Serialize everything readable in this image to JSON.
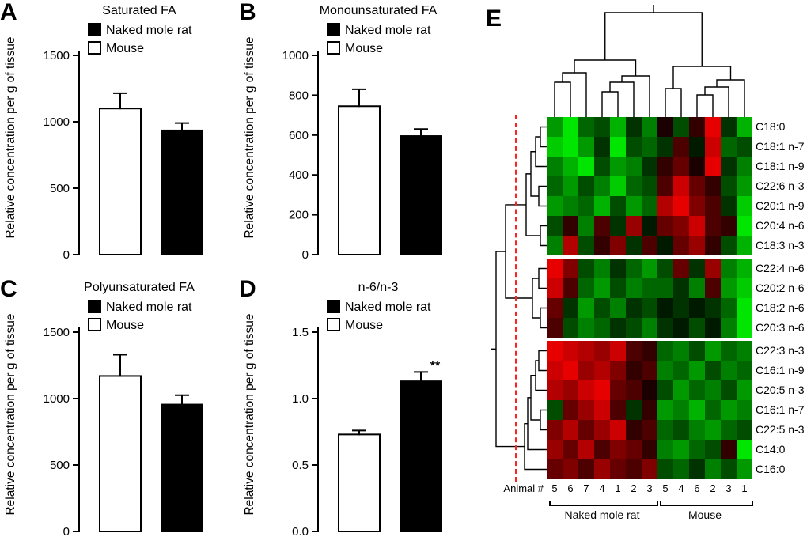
{
  "panel_letters": [
    "A",
    "B",
    "C",
    "D",
    "E"
  ],
  "colors": {
    "bar_mouse": "#ffffff",
    "bar_naked_mole_rat": "#000000",
    "heat_positive": "#ff0000",
    "heat_negative": "#00cc00",
    "heat_zero": "#000000",
    "cluster_cut_line": "#ff2020"
  },
  "chart_data": [
    {
      "panel": "A",
      "type": "bar",
      "title": "Saturated FA",
      "ylabel": "Relative concentration per g of tissue",
      "categories": [
        "Mouse",
        "Naked mole rat"
      ],
      "values": [
        1100,
        935
      ],
      "errors": [
        115,
        55
      ],
      "bar_colors": [
        "#ffffff",
        "#000000"
      ],
      "ylim": [
        0,
        1500
      ],
      "yticks": [
        {
          "v": 0,
          "label": "0"
        },
        {
          "v": 500,
          "label": "500"
        },
        {
          "v": 1000,
          "label": "1000"
        },
        {
          "v": 1500,
          "label": "1500"
        }
      ],
      "legend": [
        {
          "label": "Naked mole rat",
          "color": "#000000"
        },
        {
          "label": "Mouse",
          "color": "#ffffff"
        }
      ],
      "sig": null
    },
    {
      "panel": "B",
      "type": "bar",
      "title": "Monounsaturated FA",
      "ylabel": "Relative concentration per g of tissue",
      "categories": [
        "Mouse",
        "Naked mole rat"
      ],
      "values": [
        745,
        595
      ],
      "errors": [
        85,
        35
      ],
      "bar_colors": [
        "#ffffff",
        "#000000"
      ],
      "ylim": [
        0,
        1000
      ],
      "yticks": [
        {
          "v": 0,
          "label": "0"
        },
        {
          "v": 200,
          "label": "200"
        },
        {
          "v": 400,
          "label": "400"
        },
        {
          "v": 600,
          "label": "600"
        },
        {
          "v": 800,
          "label": "800"
        },
        {
          "v": 1000,
          "label": "1000"
        }
      ],
      "legend": [
        {
          "label": "Naked mole rat",
          "color": "#000000"
        },
        {
          "label": "Mouse",
          "color": "#ffffff"
        }
      ],
      "sig": null
    },
    {
      "panel": "C",
      "type": "bar",
      "title": "Polyunsaturated FA",
      "ylabel": "Relative concentration per g of tissue",
      "categories": [
        "Mouse",
        "Naked mole rat"
      ],
      "values": [
        1170,
        955
      ],
      "errors": [
        160,
        70
      ],
      "bar_colors": [
        "#ffffff",
        "#000000"
      ],
      "ylim": [
        0,
        1500
      ],
      "yticks": [
        {
          "v": 0,
          "label": "0"
        },
        {
          "v": 500,
          "label": "500"
        },
        {
          "v": 1000,
          "label": "1000"
        },
        {
          "v": 1500,
          "label": "1500"
        }
      ],
      "legend": [
        {
          "label": "Naked mole rat",
          "color": "#000000"
        },
        {
          "label": "Mouse",
          "color": "#ffffff"
        }
      ],
      "sig": null
    },
    {
      "panel": "D",
      "type": "bar",
      "title": "n-6/n-3",
      "ylabel": "Relative concentration per g of tissue",
      "categories": [
        "Mouse",
        "Naked mole rat"
      ],
      "values": [
        0.73,
        1.13
      ],
      "errors": [
        0.03,
        0.07
      ],
      "bar_colors": [
        "#ffffff",
        "#000000"
      ],
      "ylim": [
        0,
        1.5
      ],
      "yticks": [
        {
          "v": 0,
          "label": "0.0"
        },
        {
          "v": 0.5,
          "label": "0.5"
        },
        {
          "v": 1,
          "label": "1.0"
        },
        {
          "v": 1.5,
          "label": "1.5"
        }
      ],
      "legend": [
        {
          "label": "Naked mole rat",
          "color": "#000000"
        },
        {
          "label": "Mouse",
          "color": "#ffffff"
        }
      ],
      "sig": {
        "index": 1,
        "label": "**"
      }
    },
    {
      "panel": "E",
      "type": "heatmap",
      "x_label": "Animal #",
      "rows": [
        "C18:0",
        "C18:1 n-7",
        "C18:1 n-9",
        "C22:6 n-3",
        "C20:1 n-9",
        "C20:4 n-6",
        "C18:3 n-3",
        "C22:4 n-6",
        "C20:2 n-6",
        "C18:2 n-6",
        "C20:3 n-6",
        "C22:3 n-3",
        "C16:1 n-9",
        "C20:5 n-3",
        "C16:1 n-7",
        "C22:5 n-3",
        "C14:0",
        "C16:0"
      ],
      "row_separators_after": [
        6,
        10
      ],
      "columns": [
        "5",
        "6",
        "7",
        "4",
        "1",
        "2",
        "3",
        "5",
        "4",
        "6",
        "2",
        "3",
        "1"
      ],
      "col_groups": [
        {
          "label": "Naked mole rat",
          "span": 7
        },
        {
          "label": "Mouse",
          "span": 6
        }
      ],
      "values": [
        [
          -0.6,
          -0.9,
          -0.4,
          -0.3,
          -0.7,
          -0.2,
          -0.5,
          0.1,
          -0.3,
          0.2,
          0.9,
          -0.2,
          -0.7
        ],
        [
          -0.8,
          -0.9,
          -0.6,
          -0.2,
          -0.9,
          -0.3,
          -0.4,
          -0.2,
          0.3,
          -0.1,
          0.8,
          -0.4,
          -0.3
        ],
        [
          -0.5,
          -0.7,
          -0.9,
          -0.3,
          -0.6,
          -0.5,
          -0.2,
          0.2,
          0.4,
          0.1,
          0.9,
          -0.2,
          -0.5
        ],
        [
          -0.4,
          -0.6,
          -0.3,
          -0.5,
          -0.8,
          -0.4,
          -0.3,
          0.3,
          0.8,
          0.4,
          0.2,
          -0.3,
          -0.6
        ],
        [
          -0.6,
          -0.5,
          -0.4,
          -0.7,
          -0.3,
          -0.6,
          -0.4,
          0.7,
          0.9,
          0.5,
          0.3,
          -0.2,
          -0.8
        ],
        [
          -0.3,
          0.2,
          -0.5,
          0.3,
          -0.2,
          0.6,
          -0.1,
          0.4,
          0.5,
          0.8,
          0.3,
          0.2,
          -0.9
        ],
        [
          -0.5,
          0.7,
          -0.3,
          0.2,
          0.5,
          -0.2,
          0.3,
          -0.1,
          0.4,
          0.6,
          0.2,
          -0.3,
          -0.7
        ],
        [
          0.9,
          0.5,
          -0.3,
          -0.5,
          -0.2,
          -0.4,
          -0.6,
          -0.3,
          0.4,
          -0.2,
          0.6,
          -0.5,
          -0.7
        ],
        [
          0.8,
          0.3,
          -0.4,
          -0.6,
          -0.3,
          -0.5,
          -0.4,
          -0.4,
          -0.2,
          -0.5,
          0.3,
          -0.6,
          -0.8
        ],
        [
          0.4,
          -0.2,
          -0.6,
          -0.3,
          -0.5,
          -0.2,
          -0.3,
          -0.1,
          -0.2,
          -0.1,
          -0.2,
          -0.4,
          -0.9
        ],
        [
          0.3,
          -0.3,
          -0.5,
          -0.4,
          -0.2,
          -0.3,
          -0.5,
          -0.2,
          -0.1,
          -0.3,
          -0.1,
          -0.5,
          -0.9
        ],
        [
          0.9,
          0.8,
          0.7,
          0.6,
          0.8,
          0.3,
          0.2,
          -0.4,
          -0.5,
          -0.3,
          -0.6,
          -0.4,
          -0.5
        ],
        [
          0.8,
          0.9,
          0.6,
          0.7,
          0.5,
          0.2,
          0.3,
          -0.5,
          -0.4,
          -0.6,
          -0.3,
          -0.5,
          -0.4
        ],
        [
          0.7,
          0.6,
          0.8,
          0.9,
          0.4,
          0.3,
          0.1,
          -0.3,
          -0.6,
          -0.4,
          -0.5,
          -0.3,
          -0.6
        ],
        [
          -0.3,
          0.4,
          0.6,
          0.8,
          0.3,
          -0.2,
          0.2,
          -0.6,
          -0.5,
          -0.7,
          -0.4,
          -0.6,
          -0.5
        ],
        [
          0.5,
          0.7,
          0.4,
          0.6,
          0.8,
          0.2,
          0.3,
          -0.4,
          -0.3,
          -0.5,
          -0.6,
          -0.4,
          -0.3
        ],
        [
          0.6,
          0.4,
          0.7,
          0.3,
          0.5,
          0.4,
          0.2,
          -0.5,
          -0.6,
          -0.4,
          -0.3,
          0.2,
          -0.9
        ],
        [
          0.4,
          0.5,
          0.3,
          0.6,
          0.4,
          0.3,
          0.5,
          -0.3,
          -0.4,
          -0.2,
          -0.5,
          -0.3,
          -0.6
        ]
      ]
    }
  ]
}
